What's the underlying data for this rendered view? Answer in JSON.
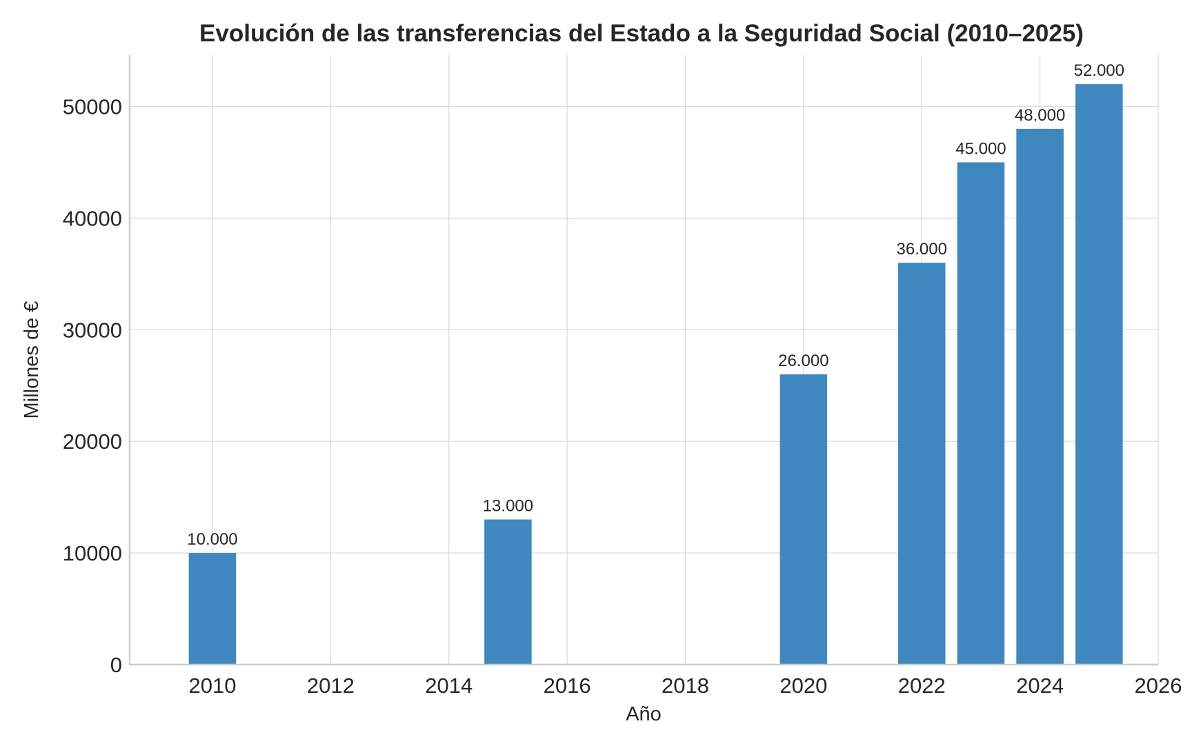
{
  "chart_data": {
    "type": "bar",
    "title": "Evolución de las transferencias del Estado a la Seguridad Social (2010–2025)",
    "xlabel": "Año",
    "ylabel": "Millones de €",
    "x": [
      2010,
      2015,
      2020,
      2022,
      2023,
      2024,
      2025
    ],
    "values": [
      10000,
      13000,
      26000,
      36000,
      45000,
      48000,
      52000
    ],
    "data_labels": [
      "10.000",
      "13.000",
      "26.000",
      "36.000",
      "45.000",
      "48.000",
      "52.000"
    ],
    "xlim": [
      2008.6,
      2026.0
    ],
    "ylim": [
      0,
      54600
    ],
    "xticks": [
      "2010",
      "2012",
      "2014",
      "2016",
      "2018",
      "2020",
      "2022",
      "2024",
      "2026"
    ],
    "yticks": [
      "0",
      "10000",
      "20000",
      "30000",
      "40000",
      "50000"
    ],
    "grid": true,
    "bar_color": "#3f88bf"
  }
}
